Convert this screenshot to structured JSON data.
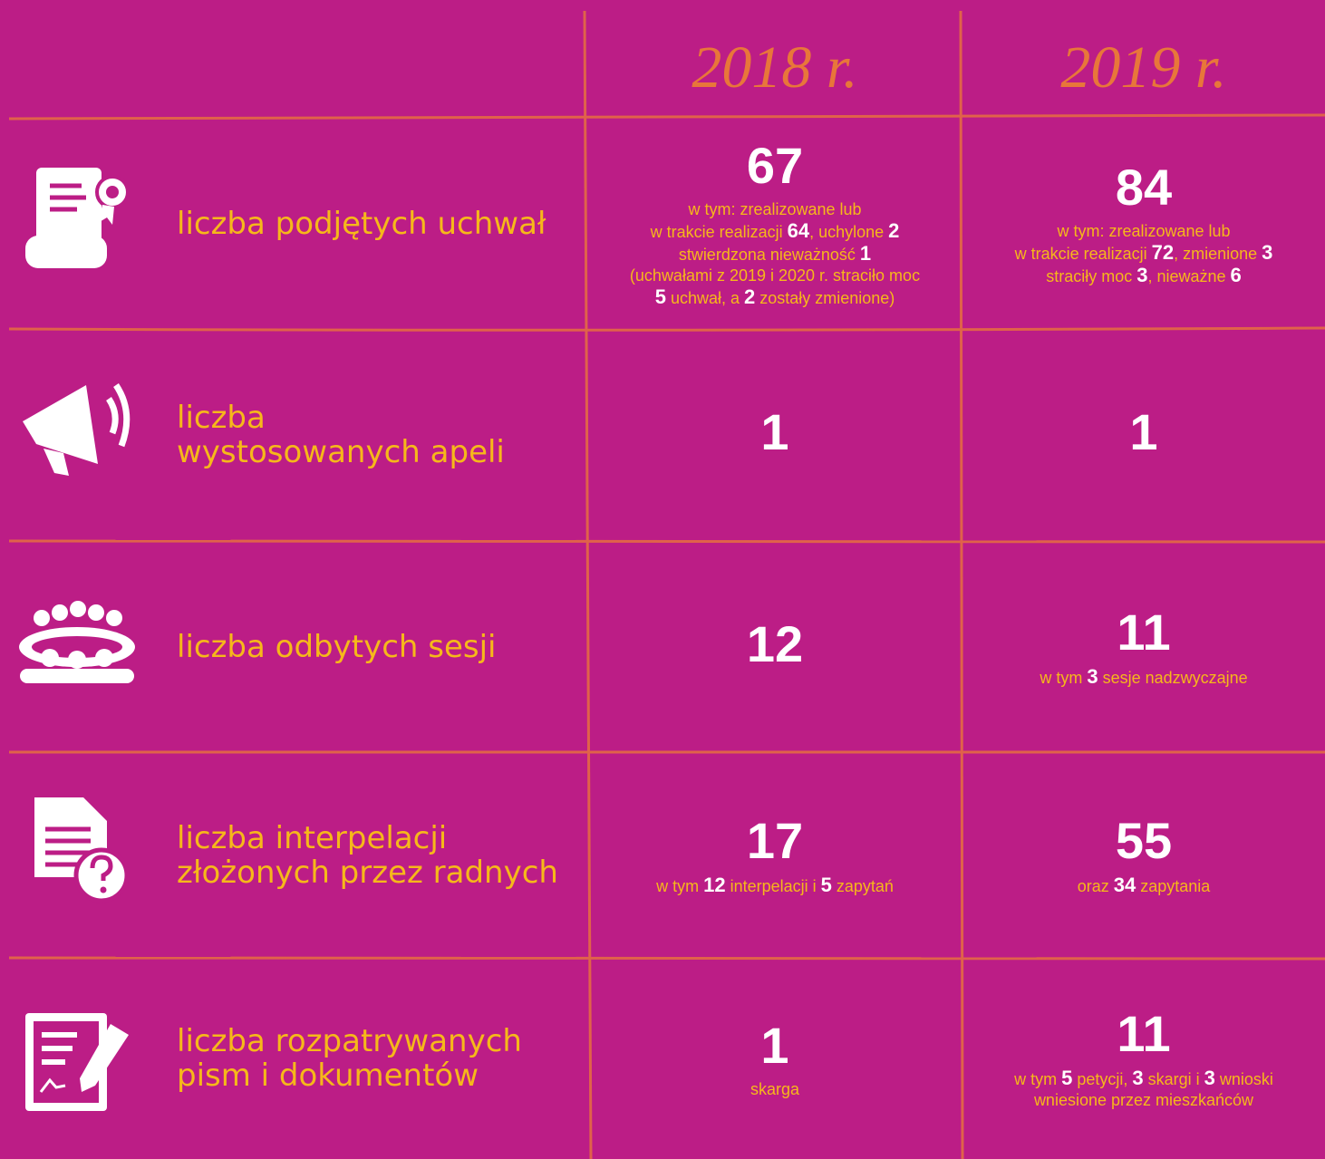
{
  "header": {
    "columns": [
      "2018 r.",
      "2019 r."
    ]
  },
  "rows": [
    {
      "label": [
        "liczba podjętych uchwał"
      ],
      "cells": [
        {
          "value": "67",
          "detail": [
            [
              {
                "text": "w tym: zrealizowane lub"
              }
            ],
            [
              {
                "text": "w trakcie realizacji "
              },
              {
                "num": "64"
              },
              {
                "text": ", uchylone "
              },
              {
                "num": "2"
              }
            ],
            [
              {
                "text": "stwierdzona nieważność "
              },
              {
                "num": "1"
              }
            ],
            [
              {
                "text": "(uchwałami z 2019 i 2020 r. straciło moc"
              }
            ],
            [
              {
                "num": "5"
              },
              {
                "text": " uchwał, a "
              },
              {
                "num": "2"
              },
              {
                "text": " zostały zmienione)"
              }
            ]
          ]
        },
        {
          "value": "84",
          "detail": [
            [
              {
                "text": "w tym: zrealizowane lub"
              }
            ],
            [
              {
                "text": "w trakcie realizacji "
              },
              {
                "num": "72"
              },
              {
                "text": ", zmienione "
              },
              {
                "num": "3"
              }
            ],
            [
              {
                "text": "straciły moc "
              },
              {
                "num": "3"
              },
              {
                "text": ", nieważne "
              },
              {
                "num": "6"
              }
            ]
          ]
        }
      ]
    },
    {
      "label": [
        "liczba",
        "wystosowanych apeli"
      ],
      "cells": [
        {
          "value": "1",
          "detail": []
        },
        {
          "value": "1",
          "detail": []
        }
      ]
    },
    {
      "label": [
        "liczba odbytych sesji"
      ],
      "cells": [
        {
          "value": "12",
          "detail": []
        },
        {
          "value": "11",
          "detail": [
            [
              {
                "text": "w tym "
              },
              {
                "num": "3"
              },
              {
                "text": " sesje nadzwyczajne"
              }
            ]
          ]
        }
      ]
    },
    {
      "label": [
        "liczba interpelacji",
        "złożonych przez radnych"
      ],
      "cells": [
        {
          "value": "17",
          "detail": [
            [
              {
                "text": "w tym "
              },
              {
                "num": "12"
              },
              {
                "text": " interpelacji i "
              },
              {
                "num": "5"
              },
              {
                "text": " zapytań"
              }
            ]
          ]
        },
        {
          "value": "55",
          "detail": [
            [
              {
                "text": "oraz "
              },
              {
                "num": "34"
              },
              {
                "text": " zapytania"
              }
            ]
          ]
        }
      ]
    },
    {
      "label": [
        "liczba rozpatrywanych",
        "pism i dokumentów"
      ],
      "cells": [
        {
          "value": "1",
          "detail": [
            [
              {
                "text": "skarga"
              }
            ]
          ]
        },
        {
          "value": "11",
          "detail": [
            [
              {
                "text": "w tym "
              },
              {
                "num": "5"
              },
              {
                "text": " petycji, "
              },
              {
                "num": "3"
              },
              {
                "text": " skargi i "
              },
              {
                "num": "3"
              },
              {
                "text": " wnioski"
              }
            ],
            [
              {
                "text": "wniesione przez mieszkańców"
              }
            ]
          ]
        }
      ]
    }
  ]
}
